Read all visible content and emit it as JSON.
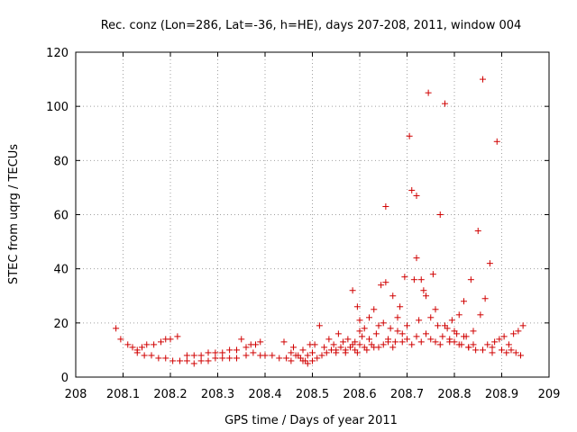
{
  "chart_data": {
    "type": "scatter",
    "title": "Rec. conz (Lon=286, Lat=-36, h=HE), days 207-208, 2011, window 004",
    "xlabel": "GPS time / Days of year 2011",
    "ylabel": "STEC from uqrg / TECUs",
    "xlim": [
      208,
      209
    ],
    "ylim": [
      0,
      120
    ],
    "x_ticks": [
      "208",
      "208.1",
      "208.2",
      "208.3",
      "208.4",
      "208.5",
      "208.6",
      "208.7",
      "208.8",
      "208.9",
      "209"
    ],
    "y_ticks": [
      "0",
      "20",
      "40",
      "60",
      "80",
      "100",
      "120"
    ],
    "grid": true,
    "marker": "plus",
    "color": "#d00000",
    "points": [
      [
        208.085,
        18
      ],
      [
        208.095,
        14
      ],
      [
        208.11,
        12
      ],
      [
        208.12,
        11
      ],
      [
        208.13,
        10
      ],
      [
        208.14,
        11
      ],
      [
        208.15,
        12
      ],
      [
        208.165,
        12
      ],
      [
        208.18,
        13
      ],
      [
        208.19,
        14
      ],
      [
        208.2,
        14
      ],
      [
        208.215,
        15
      ],
      [
        208.13,
        9
      ],
      [
        208.145,
        8
      ],
      [
        208.16,
        8
      ],
      [
        208.175,
        7
      ],
      [
        208.19,
        7
      ],
      [
        208.205,
        6
      ],
      [
        208.22,
        6
      ],
      [
        208.235,
        6
      ],
      [
        208.25,
        5
      ],
      [
        208.265,
        6
      ],
      [
        208.28,
        6
      ],
      [
        208.295,
        7
      ],
      [
        208.31,
        7
      ],
      [
        208.325,
        7
      ],
      [
        208.34,
        7
      ],
      [
        208.235,
        8
      ],
      [
        208.25,
        8
      ],
      [
        208.265,
        8
      ],
      [
        208.28,
        9
      ],
      [
        208.295,
        9
      ],
      [
        208.31,
        9
      ],
      [
        208.325,
        10
      ],
      [
        208.34,
        10
      ],
      [
        208.35,
        14
      ],
      [
        208.36,
        11
      ],
      [
        208.37,
        12
      ],
      [
        208.38,
        12
      ],
      [
        208.39,
        13
      ],
      [
        208.36,
        8
      ],
      [
        208.375,
        9
      ],
      [
        208.39,
        8
      ],
      [
        208.4,
        8
      ],
      [
        208.415,
        8
      ],
      [
        208.43,
        7
      ],
      [
        208.44,
        13
      ],
      [
        208.445,
        7
      ],
      [
        208.455,
        6
      ],
      [
        208.46,
        11
      ],
      [
        208.465,
        8
      ],
      [
        208.475,
        7
      ],
      [
        208.48,
        10
      ],
      [
        208.485,
        6
      ],
      [
        208.49,
        8
      ],
      [
        208.495,
        12
      ],
      [
        208.5,
        9
      ],
      [
        208.505,
        12
      ],
      [
        208.455,
        9
      ],
      [
        208.47,
        8
      ],
      [
        208.48,
        6
      ],
      [
        208.49,
        5
      ],
      [
        208.5,
        6
      ],
      [
        208.51,
        7
      ],
      [
        208.515,
        19
      ],
      [
        208.52,
        8
      ],
      [
        208.525,
        11
      ],
      [
        208.53,
        9
      ],
      [
        208.535,
        14
      ],
      [
        208.54,
        10
      ],
      [
        208.545,
        12
      ],
      [
        208.55,
        10
      ],
      [
        208.555,
        16
      ],
      [
        208.56,
        11
      ],
      [
        208.565,
        13
      ],
      [
        208.57,
        10
      ],
      [
        208.575,
        14
      ],
      [
        208.58,
        11
      ],
      [
        208.585,
        12
      ],
      [
        208.59,
        13
      ],
      [
        208.595,
        9
      ],
      [
        208.6,
        12
      ],
      [
        208.585,
        32
      ],
      [
        208.595,
        26
      ],
      [
        208.6,
        21
      ],
      [
        208.605,
        15
      ],
      [
        208.61,
        18
      ],
      [
        208.615,
        10
      ],
      [
        208.62,
        22
      ],
      [
        208.625,
        12
      ],
      [
        208.63,
        25
      ],
      [
        208.635,
        16
      ],
      [
        208.64,
        11
      ],
      [
        208.645,
        34
      ],
      [
        208.65,
        20
      ],
      [
        208.655,
        35
      ],
      [
        208.66,
        14
      ],
      [
        208.665,
        18
      ],
      [
        208.67,
        30
      ],
      [
        208.675,
        13
      ],
      [
        208.68,
        22
      ],
      [
        208.685,
        26
      ],
      [
        208.69,
        16
      ],
      [
        208.695,
        37
      ],
      [
        208.7,
        19
      ],
      [
        208.655,
        63
      ],
      [
        208.705,
        89
      ],
      [
        208.71,
        69
      ],
      [
        208.715,
        36
      ],
      [
        208.72,
        67
      ],
      [
        208.72,
        44
      ],
      [
        208.725,
        21
      ],
      [
        208.73,
        36
      ],
      [
        208.735,
        32
      ],
      [
        208.74,
        30
      ],
      [
        208.745,
        105
      ],
      [
        208.75,
        22
      ],
      [
        208.755,
        38
      ],
      [
        208.76,
        25
      ],
      [
        208.765,
        19
      ],
      [
        208.77,
        60
      ],
      [
        208.775,
        15
      ],
      [
        208.78,
        101
      ],
      [
        208.785,
        18
      ],
      [
        208.79,
        14
      ],
      [
        208.795,
        21
      ],
      [
        208.8,
        13
      ],
      [
        208.805,
        16
      ],
      [
        208.81,
        23
      ],
      [
        208.815,
        12
      ],
      [
        208.82,
        28
      ],
      [
        208.825,
        15
      ],
      [
        208.83,
        11
      ],
      [
        208.835,
        36
      ],
      [
        208.84,
        17
      ],
      [
        208.845,
        10
      ],
      [
        208.85,
        54
      ],
      [
        208.855,
        23
      ],
      [
        208.86,
        110
      ],
      [
        208.865,
        29
      ],
      [
        208.87,
        12
      ],
      [
        208.875,
        42
      ],
      [
        208.88,
        11
      ],
      [
        208.885,
        13
      ],
      [
        208.89,
        87
      ],
      [
        208.895,
        14
      ],
      [
        208.9,
        10
      ],
      [
        208.905,
        15
      ],
      [
        208.91,
        9
      ],
      [
        208.915,
        12
      ],
      [
        208.92,
        10
      ],
      [
        208.925,
        16
      ],
      [
        208.93,
        9
      ],
      [
        208.935,
        17
      ],
      [
        208.94,
        8
      ],
      [
        208.945,
        19
      ],
      [
        208.6,
        17
      ],
      [
        208.62,
        14
      ],
      [
        208.64,
        19
      ],
      [
        208.66,
        13
      ],
      [
        208.68,
        17
      ],
      [
        208.7,
        14
      ],
      [
        208.72,
        15
      ],
      [
        208.74,
        16
      ],
      [
        208.76,
        13
      ],
      [
        208.78,
        19
      ],
      [
        208.8,
        17
      ],
      [
        208.82,
        15
      ],
      [
        208.84,
        12
      ],
      [
        208.86,
        10
      ],
      [
        208.88,
        9
      ],
      [
        208.55,
        9
      ],
      [
        208.57,
        9
      ],
      [
        208.59,
        10
      ],
      [
        208.61,
        11
      ],
      [
        208.63,
        11
      ],
      [
        208.65,
        12
      ],
      [
        208.67,
        11
      ],
      [
        208.69,
        13
      ],
      [
        208.71,
        12
      ],
      [
        208.73,
        13
      ],
      [
        208.75,
        14
      ],
      [
        208.77,
        12
      ],
      [
        208.79,
        13
      ],
      [
        208.81,
        12
      ],
      [
        208.83,
        11
      ]
    ]
  }
}
